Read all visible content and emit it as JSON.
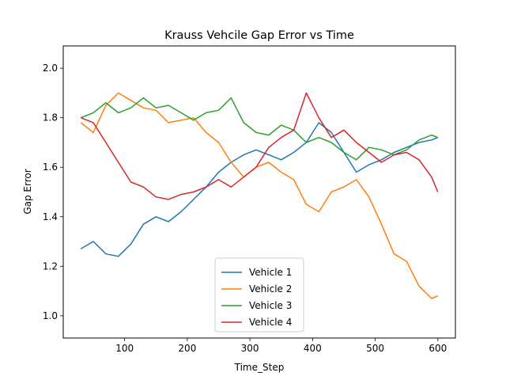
{
  "chart_data": {
    "type": "line",
    "title": "Krauss Vehcile Gap Error vs Time",
    "xlabel": "Time_Step",
    "ylabel": "Gap Error",
    "xlim": [
      2,
      628
    ],
    "ylim": [
      0.91,
      2.09
    ],
    "xticks": [
      100,
      200,
      300,
      400,
      500,
      600
    ],
    "yticks": [
      1.0,
      1.2,
      1.4,
      1.6,
      1.8,
      2.0
    ],
    "xtick_labels": [
      "100",
      "200",
      "300",
      "400",
      "500",
      "600"
    ],
    "ytick_labels": [
      "1.0",
      "1.2",
      "1.4",
      "1.6",
      "1.8",
      "2.0"
    ],
    "grid": false,
    "legend_position": "bottom-center",
    "x": [
      30,
      50,
      70,
      90,
      110,
      130,
      150,
      170,
      190,
      210,
      230,
      250,
      270,
      290,
      310,
      330,
      350,
      370,
      390,
      410,
      430,
      450,
      470,
      490,
      510,
      530,
      550,
      570,
      590,
      600
    ],
    "series": [
      {
        "name": "Vehicle 1",
        "color": "#1f77b4",
        "values": [
          1.27,
          1.3,
          1.25,
          1.24,
          1.29,
          1.37,
          1.4,
          1.38,
          1.42,
          1.47,
          1.52,
          1.58,
          1.62,
          1.65,
          1.67,
          1.65,
          1.63,
          1.66,
          1.7,
          1.78,
          1.74,
          1.66,
          1.58,
          1.61,
          1.63,
          1.66,
          1.68,
          1.7,
          1.71,
          1.72
        ]
      },
      {
        "name": "Vehicle 2",
        "color": "#ff7f0e",
        "values": [
          1.78,
          1.74,
          1.85,
          1.9,
          1.87,
          1.84,
          1.83,
          1.78,
          1.79,
          1.8,
          1.74,
          1.7,
          1.62,
          1.56,
          1.6,
          1.62,
          1.58,
          1.55,
          1.45,
          1.42,
          1.5,
          1.52,
          1.55,
          1.48,
          1.37,
          1.25,
          1.22,
          1.12,
          1.07,
          1.08
        ]
      },
      {
        "name": "Vehicle 3",
        "color": "#2ca02c",
        "values": [
          1.8,
          1.82,
          1.86,
          1.82,
          1.84,
          1.88,
          1.84,
          1.85,
          1.82,
          1.79,
          1.82,
          1.83,
          1.88,
          1.78,
          1.74,
          1.73,
          1.77,
          1.75,
          1.7,
          1.72,
          1.7,
          1.66,
          1.63,
          1.68,
          1.67,
          1.65,
          1.67,
          1.71,
          1.73,
          1.72
        ]
      },
      {
        "name": "Vehicle 4",
        "color": "#d62728",
        "values": [
          1.8,
          1.78,
          1.7,
          1.62,
          1.54,
          1.52,
          1.48,
          1.47,
          1.49,
          1.5,
          1.52,
          1.55,
          1.52,
          1.56,
          1.6,
          1.68,
          1.72,
          1.75,
          1.9,
          1.8,
          1.72,
          1.75,
          1.7,
          1.66,
          1.62,
          1.65,
          1.66,
          1.63,
          1.56,
          1.5
        ]
      }
    ]
  }
}
